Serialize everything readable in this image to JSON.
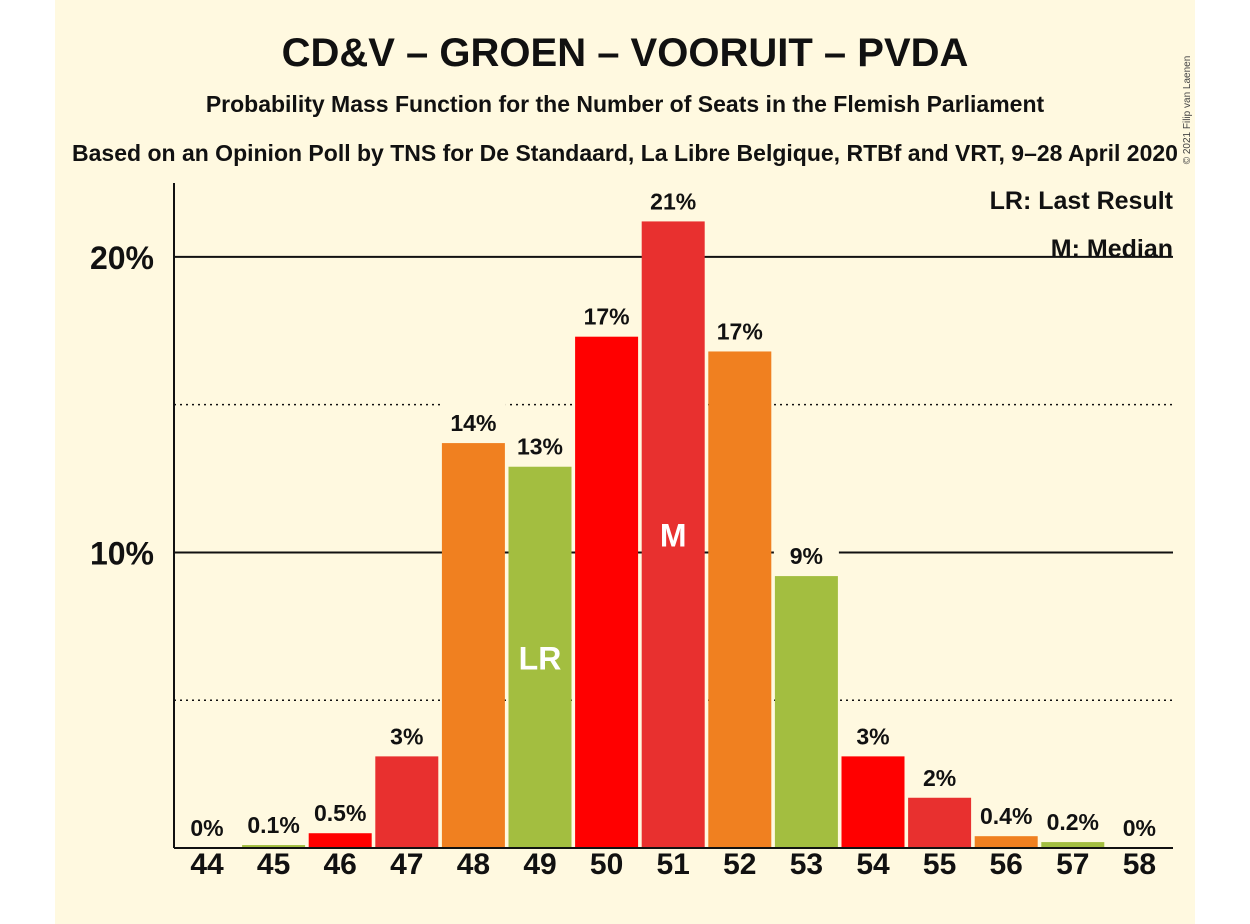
{
  "title": "CD&V – GROEN – VOORUIT – PVDA",
  "subtitle": "Probability Mass Function for the Number of Seats in the Flemish Parliament",
  "source": "Based on an Opinion Poll by TNS for De Standaard, La Libre Belgique, RTBf and VRT, 9–28 April 2020",
  "copyright": "© 2021 Filip van Laenen",
  "legend": {
    "last_result": "LR: Last Result",
    "median": "M: Median"
  },
  "colors": {
    "background": "#fff9e0",
    "red_bright": "#ff0000",
    "red": "#e8302f",
    "orange": "#f08020",
    "green": "#a3be40"
  },
  "chart_data": {
    "type": "bar",
    "categories": [
      "44",
      "45",
      "46",
      "47",
      "48",
      "49",
      "50",
      "51",
      "52",
      "53",
      "54",
      "55",
      "56",
      "57",
      "58"
    ],
    "values": [
      0,
      0.1,
      0.5,
      3.1,
      13.7,
      12.9,
      17.3,
      21.2,
      16.8,
      9.2,
      3.1,
      1.7,
      0.4,
      0.2,
      0
    ],
    "labels": [
      "0%",
      "0.1%",
      "0.5%",
      "3%",
      "14%",
      "13%",
      "17%",
      "21%",
      "17%",
      "9%",
      "3%",
      "2%",
      "0.4%",
      "0.2%",
      "0%"
    ],
    "bar_colors": [
      "#ff0000",
      "#a3be40",
      "#ff0000",
      "#e8302f",
      "#f08020",
      "#a3be40",
      "#ff0000",
      "#e8302f",
      "#f08020",
      "#a3be40",
      "#ff0000",
      "#e8302f",
      "#f08020",
      "#a3be40",
      "#ff0000"
    ],
    "markers": {
      "49": "LR",
      "51": "M"
    },
    "yticks": [
      {
        "value": 10,
        "label": "10%"
      },
      {
        "value": 20,
        "label": "20%"
      }
    ],
    "ylim": [
      0,
      22.5
    ],
    "minor_gridlines": [
      5,
      15
    ],
    "xlabel": "",
    "ylabel": ""
  }
}
